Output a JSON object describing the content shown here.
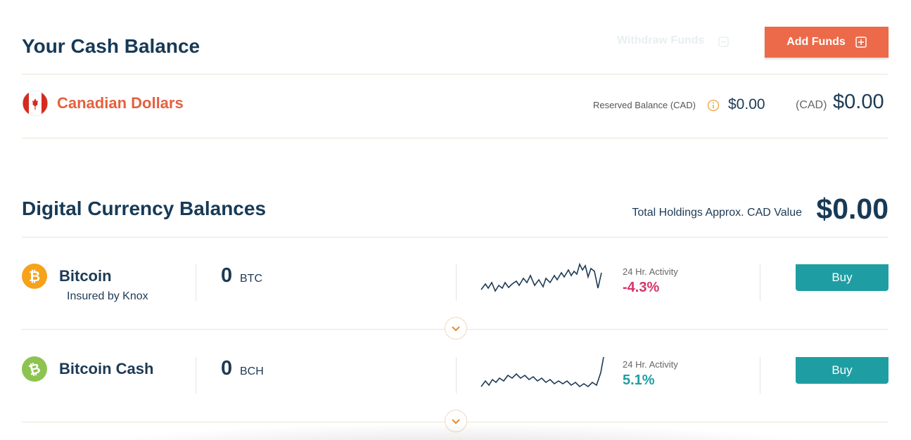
{
  "cash_balance": {
    "title": "Your Cash Balance",
    "withdraw_button": "Withdraw Funds",
    "add_button": "Add Funds",
    "currency": "Canadian Dollars",
    "reserved_label": "Reserved Balance (CAD)",
    "reserved_amount": "$0.00",
    "balance_unit": "(CAD)",
    "balance_amount": "$0.00"
  },
  "digital_balances": {
    "title": "Digital Currency Balances",
    "total_label": "Total Holdings Approx. CAD Value",
    "total_amount": "$0.00",
    "rows": [
      {
        "name": "Bitcoin",
        "note": "Insured by Knox",
        "amount": "0",
        "unit": "BTC",
        "activity_label": "24 Hr. Activity",
        "change": "-4.3%",
        "button": "Buy"
      },
      {
        "name": "Bitcoin Cash",
        "amount": "0",
        "unit": "BCH",
        "activity_label": "24 Hr. Activity",
        "change": "5.1%",
        "button": "Buy"
      }
    ]
  }
}
